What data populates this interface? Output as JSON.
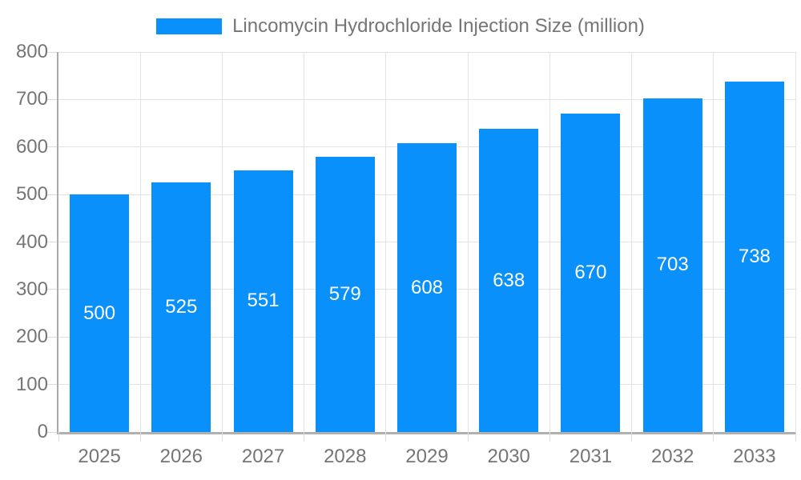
{
  "legend": {
    "label": "Lincomycin Hydrochloride Injection Size (million)",
    "swatch_color": "#0a90fb"
  },
  "chart_data": {
    "type": "bar",
    "title": "Lincomycin Hydrochloride Injection Size (million)",
    "series_name": "Lincomycin Hydrochloride Injection Size (million)",
    "categories": [
      "2025",
      "2026",
      "2027",
      "2028",
      "2029",
      "2030",
      "2031",
      "2032",
      "2033"
    ],
    "values": [
      500,
      525,
      551,
      579,
      608,
      638,
      670,
      703,
      738
    ],
    "xlabel": "",
    "ylabel": "",
    "ylim": [
      0,
      800
    ],
    "ytick_interval": 100,
    "yticks": [
      0,
      100,
      200,
      300,
      400,
      500,
      600,
      700,
      800
    ],
    "grid": true,
    "legend_position": "top-center",
    "value_label_position": "inside-center",
    "colors": {
      "bar": "#0a90fb",
      "value_label": "#ffffff",
      "axis_text": "#757575",
      "axis_line_y": "#aaaaaa",
      "axis_line_x": "#b0b0b0",
      "gridline": "#e3e3e3",
      "tick": "#dcdcdc",
      "background": "#ffffff"
    }
  }
}
